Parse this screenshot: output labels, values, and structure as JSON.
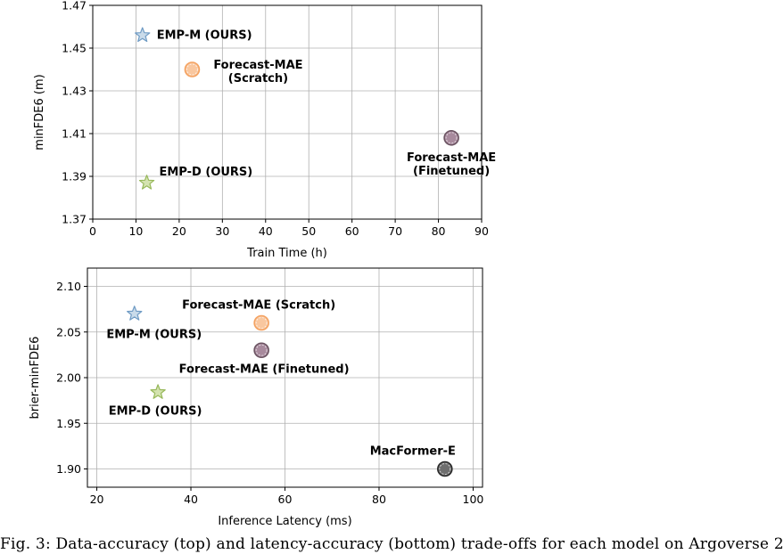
{
  "chart_data": [
    {
      "type": "scatter",
      "xlabel": "Train Time (h)",
      "ylabel": "minFDE6 (m)",
      "xlim": [
        0,
        90
      ],
      "ylim": [
        1.37,
        1.47
      ],
      "xticks": [
        0,
        10,
        20,
        30,
        40,
        50,
        60,
        70,
        80,
        90
      ],
      "yticks": [
        1.37,
        1.39,
        1.41,
        1.43,
        1.45,
        1.47
      ],
      "xtick_labels": [
        "0",
        "10",
        "20",
        "30",
        "40",
        "50",
        "60",
        "70",
        "80",
        "90"
      ],
      "ytick_labels": [
        "1.37",
        "1.39",
        "1.41",
        "1.43",
        "1.45",
        "1.47"
      ],
      "grid": true,
      "points": [
        {
          "label": "EMP-M (OURS)",
          "x": 11.5,
          "y": 1.456,
          "marker": "star",
          "color": "#6f9bc4",
          "fill": "#c9dbea"
        },
        {
          "label": "Forecast-MAE\n(Scratch)",
          "x": 23,
          "y": 1.44,
          "marker": "circle",
          "color": "#f4a261",
          "fill": "#f9c79f"
        },
        {
          "label": "Forecast-MAE\n(Finetuned)",
          "x": 83,
          "y": 1.408,
          "marker": "circle",
          "color": "#6b5462",
          "fill": "#a88a9d"
        },
        {
          "label": "EMP-D (OURS)",
          "x": 12.5,
          "y": 1.387,
          "marker": "star",
          "color": "#97b85a",
          "fill": "#d4e3b0"
        }
      ]
    },
    {
      "type": "scatter",
      "xlabel": "Inference Latency (ms)",
      "ylabel": "brier-minFDE6",
      "xlim": [
        18,
        102
      ],
      "ylim": [
        1.88,
        2.12
      ],
      "xticks": [
        20,
        40,
        60,
        80,
        100
      ],
      "yticks": [
        1.9,
        1.95,
        2.0,
        2.05,
        2.1
      ],
      "xtick_labels": [
        "20",
        "40",
        "60",
        "80",
        "100"
      ],
      "ytick_labels": [
        "1.90",
        "1.95",
        "2.00",
        "2.05",
        "2.10"
      ],
      "grid": true,
      "points": [
        {
          "label": "EMP-M (OURS)",
          "x": 28,
          "y": 2.07,
          "marker": "star",
          "color": "#6f9bc4",
          "fill": "#c9dbea"
        },
        {
          "label": "Forecast-MAE (Scratch)",
          "x": 55,
          "y": 2.06,
          "marker": "circle",
          "color": "#f4a261",
          "fill": "#f9c79f"
        },
        {
          "label": "Forecast-MAE (Finetuned)",
          "x": 55,
          "y": 2.03,
          "marker": "circle",
          "color": "#6b5462",
          "fill": "#a88a9d"
        },
        {
          "label": "EMP-D (OURS)",
          "x": 33,
          "y": 1.984,
          "marker": "star",
          "color": "#97b85a",
          "fill": "#d4e3b0"
        },
        {
          "label": "MacFormer-E",
          "x": 94,
          "y": 1.9,
          "marker": "circle",
          "color": "#2b2b2b",
          "fill": "#6e6e6e"
        }
      ]
    }
  ],
  "caption": "Fig. 3:  Data-accuracy (top) and latency-accuracy (bottom) trade-offs for each model on Argoverse 2"
}
